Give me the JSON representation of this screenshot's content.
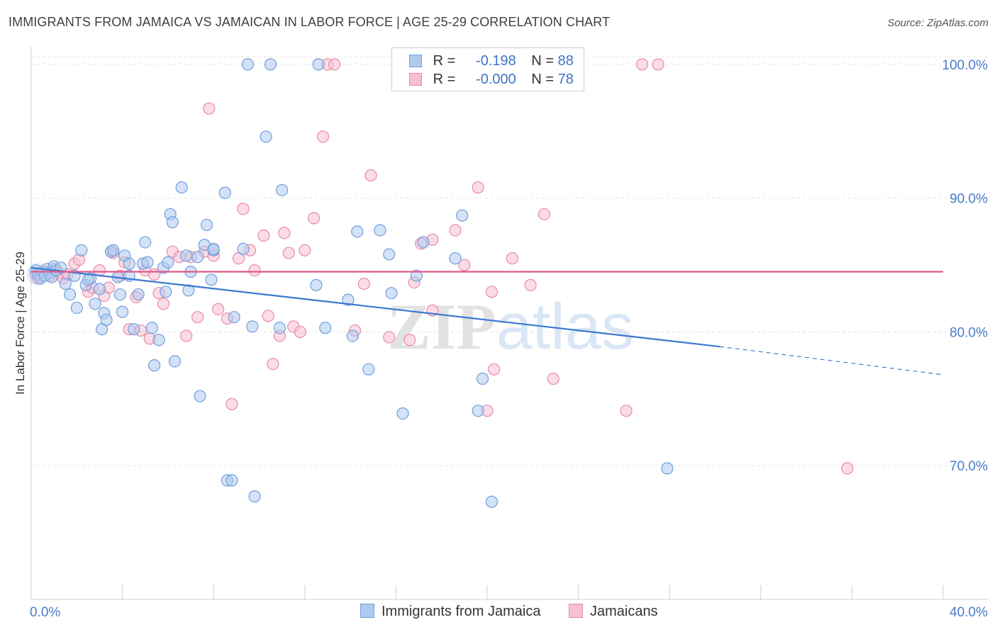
{
  "title": "IMMIGRANTS FROM JAMAICA VS JAMAICAN IN LABOR FORCE | AGE 25-29 CORRELATION CHART",
  "source": "Source: ZipAtlas.com",
  "colors": {
    "series1_fill": "#aecbef",
    "series1_stroke": "#6f9fdc",
    "series1_line": "#3a78d0",
    "series2_fill": "#f7bfd2",
    "series2_stroke": "#e88aab",
    "series2_line": "#e05a8a",
    "tick_text": "#4a7cc8",
    "grid": "#e6e6e6"
  },
  "legend": {
    "rows": [
      {
        "r_label": "R =",
        "r_value": "-0.198",
        "n_label": "N =",
        "n_value": "88"
      },
      {
        "r_label": "R =",
        "r_value": "-0.000",
        "n_label": "N =",
        "n_value": "78"
      }
    ],
    "bottom": [
      "Immigrants from Jamaica",
      "Jamaicans"
    ]
  },
  "chart_data": {
    "type": "scatter",
    "title": "IMMIGRANTS FROM JAMAICA VS JAMAICAN IN LABOR FORCE | AGE 25-29 CORRELATION CHART",
    "xlabel": "",
    "ylabel": "In Labor Force | Age 25-29",
    "xlim": [
      0,
      40
    ],
    "ylim": [
      60,
      101
    ],
    "x_tick_labels": [
      "0.0%",
      "40.0%"
    ],
    "y_ticks": [
      70,
      80,
      90,
      100
    ],
    "y_tick_labels": [
      "70.0%",
      "80.0%",
      "90.0%",
      "100.0%"
    ],
    "grid": true,
    "legend_placement": "top-center",
    "watermark": "ZIPatlas",
    "series": [
      {
        "name": "Immigrants from Jamaica",
        "r": -0.198,
        "n": 88,
        "trend": {
          "x0": 0,
          "y0": 84.8,
          "x1": 30.2,
          "y1": 78.9,
          "dash_to_x": 40,
          "dash_to_y": 76.8
        },
        "points": [
          [
            0.2,
            84.6
          ],
          [
            0.3,
            84.3
          ],
          [
            0.4,
            84.0
          ],
          [
            0.5,
            84.5
          ],
          [
            0.6,
            84.2
          ],
          [
            0.7,
            84.7
          ],
          [
            0.8,
            84.4
          ],
          [
            0.9,
            84.1
          ],
          [
            1.0,
            84.9
          ],
          [
            1.1,
            84.6
          ],
          [
            1.3,
            84.8
          ],
          [
            1.5,
            83.6
          ],
          [
            1.7,
            82.8
          ],
          [
            1.9,
            84.2
          ],
          [
            2.0,
            81.8
          ],
          [
            2.2,
            86.1
          ],
          [
            2.4,
            83.5
          ],
          [
            2.6,
            84.0
          ],
          [
            2.8,
            82.1
          ],
          [
            3.0,
            83.2
          ],
          [
            3.1,
            80.2
          ],
          [
            3.2,
            81.4
          ],
          [
            3.3,
            80.9
          ],
          [
            3.5,
            86.0
          ],
          [
            3.6,
            86.1
          ],
          [
            3.8,
            84.1
          ],
          [
            3.9,
            82.8
          ],
          [
            4.0,
            81.5
          ],
          [
            4.1,
            85.7
          ],
          [
            4.3,
            84.2
          ],
          [
            4.5,
            80.2
          ],
          [
            4.7,
            82.8
          ],
          [
            4.9,
            85.1
          ],
          [
            5.0,
            86.7
          ],
          [
            5.1,
            85.2
          ],
          [
            5.3,
            80.3
          ],
          [
            5.4,
            77.5
          ],
          [
            5.6,
            79.4
          ],
          [
            5.8,
            84.8
          ],
          [
            5.9,
            83.0
          ],
          [
            6.0,
            85.2
          ],
          [
            6.1,
            88.8
          ],
          [
            6.2,
            88.2
          ],
          [
            6.3,
            77.8
          ],
          [
            6.6,
            90.8
          ],
          [
            6.8,
            85.7
          ],
          [
            6.9,
            83.1
          ],
          [
            7.0,
            84.5
          ],
          [
            7.3,
            85.6
          ],
          [
            7.4,
            75.2
          ],
          [
            7.6,
            86.5
          ],
          [
            7.7,
            88.0
          ],
          [
            7.9,
            83.9
          ],
          [
            8.0,
            86.1
          ],
          [
            8.5,
            90.4
          ],
          [
            8.6,
            68.9
          ],
          [
            8.8,
            68.9
          ],
          [
            8.9,
            81.1
          ],
          [
            9.3,
            86.2
          ],
          [
            9.5,
            100.0
          ],
          [
            9.7,
            80.4
          ],
          [
            9.8,
            67.7
          ],
          [
            10.3,
            94.6
          ],
          [
            10.5,
            100.0
          ],
          [
            10.9,
            80.3
          ],
          [
            11.0,
            90.6
          ],
          [
            12.5,
            83.5
          ],
          [
            12.6,
            100.0
          ],
          [
            12.9,
            80.3
          ],
          [
            13.9,
            82.4
          ],
          [
            14.1,
            79.7
          ],
          [
            14.3,
            87.5
          ],
          [
            14.8,
            77.2
          ],
          [
            15.3,
            87.6
          ],
          [
            15.7,
            85.8
          ],
          [
            15.8,
            82.9
          ],
          [
            16.3,
            73.9
          ],
          [
            16.9,
            84.2
          ],
          [
            17.2,
            86.7
          ],
          [
            18.6,
            85.5
          ],
          [
            18.9,
            88.7
          ],
          [
            19.6,
            74.1
          ],
          [
            19.8,
            76.5
          ],
          [
            20.2,
            67.3
          ],
          [
            27.9,
            69.8
          ],
          [
            8.0,
            86.2
          ],
          [
            4.3,
            85.1
          ],
          [
            2.5,
            83.9
          ]
        ]
      },
      {
        "name": "Jamaicans",
        "r": -0.0,
        "n": 78,
        "trend": {
          "x0": 0,
          "y0": 84.5,
          "x1": 40,
          "y1": 84.5
        },
        "points": [
          [
            0.2,
            84.3
          ],
          [
            0.4,
            84.1
          ],
          [
            0.6,
            84.5
          ],
          [
            0.8,
            84.2
          ],
          [
            1.0,
            84.7
          ],
          [
            1.2,
            84.4
          ],
          [
            1.4,
            84.0
          ],
          [
            1.6,
            84.3
          ],
          [
            1.9,
            85.1
          ],
          [
            2.1,
            85.4
          ],
          [
            2.5,
            83.0
          ],
          [
            2.7,
            83.3
          ],
          [
            3.0,
            84.6
          ],
          [
            3.2,
            82.7
          ],
          [
            3.4,
            83.3
          ],
          [
            3.6,
            85.9
          ],
          [
            3.9,
            84.2
          ],
          [
            4.1,
            85.2
          ],
          [
            4.3,
            80.2
          ],
          [
            4.6,
            82.6
          ],
          [
            4.8,
            80.1
          ],
          [
            5.0,
            84.6
          ],
          [
            5.2,
            79.5
          ],
          [
            5.4,
            84.3
          ],
          [
            5.6,
            82.9
          ],
          [
            5.8,
            82.1
          ],
          [
            6.2,
            86.0
          ],
          [
            6.5,
            85.6
          ],
          [
            6.8,
            79.7
          ],
          [
            7.0,
            85.6
          ],
          [
            7.3,
            81.1
          ],
          [
            7.6,
            86.0
          ],
          [
            7.8,
            96.7
          ],
          [
            8.0,
            85.7
          ],
          [
            8.2,
            81.7
          ],
          [
            8.6,
            81.0
          ],
          [
            8.8,
            74.6
          ],
          [
            9.1,
            85.5
          ],
          [
            9.3,
            89.2
          ],
          [
            9.6,
            86.1
          ],
          [
            9.8,
            84.6
          ],
          [
            10.2,
            87.2
          ],
          [
            10.4,
            81.2
          ],
          [
            10.6,
            77.6
          ],
          [
            10.9,
            79.7
          ],
          [
            11.1,
            87.4
          ],
          [
            11.3,
            85.9
          ],
          [
            11.5,
            80.4
          ],
          [
            11.8,
            80.0
          ],
          [
            12.0,
            86.1
          ],
          [
            12.4,
            88.5
          ],
          [
            12.8,
            94.6
          ],
          [
            13.0,
            100.0
          ],
          [
            13.3,
            100.0
          ],
          [
            14.2,
            80.1
          ],
          [
            14.6,
            83.6
          ],
          [
            14.9,
            91.7
          ],
          [
            15.7,
            79.6
          ],
          [
            16.6,
            79.4
          ],
          [
            16.8,
            83.7
          ],
          [
            17.1,
            86.6
          ],
          [
            17.6,
            81.6
          ],
          [
            17.6,
            86.9
          ],
          [
            18.6,
            87.6
          ],
          [
            19.0,
            85.0
          ],
          [
            19.6,
            90.8
          ],
          [
            20.0,
            74.1
          ],
          [
            20.2,
            83.0
          ],
          [
            20.3,
            77.2
          ],
          [
            21.1,
            85.5
          ],
          [
            21.9,
            83.5
          ],
          [
            22.5,
            88.8
          ],
          [
            22.9,
            76.5
          ],
          [
            26.1,
            74.1
          ],
          [
            26.8,
            100.0
          ],
          [
            27.5,
            100.0
          ],
          [
            35.8,
            69.8
          ],
          [
            0.3,
            84.0
          ]
        ]
      }
    ]
  }
}
